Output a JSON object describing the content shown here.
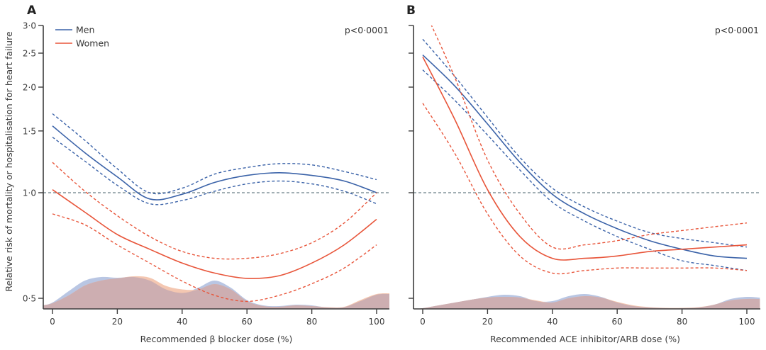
{
  "figure": {
    "y_axis_label": "Relative risk of mortality or hospitalisation for heart failure",
    "legend": [
      {
        "name": "Men",
        "color": "#3a62a8"
      },
      {
        "name": "Women",
        "color": "#e8553a"
      }
    ],
    "reference_line_color": "#6b7f86",
    "density_colors": {
      "men": "#b9c6e3",
      "women": "#f3c4ad",
      "overlap": "#cdaeb1"
    }
  },
  "chart_data": [
    {
      "type": "line",
      "panel": "A",
      "title": "A",
      "annotation": "p<0·0001",
      "xlabel": "Recommended β blocker dose (%)",
      "ylabel": "Relative risk of mortality or hospitalisation for heart failure",
      "x_ticks": [
        "0",
        "20",
        "40",
        "60",
        "80",
        "100"
      ],
      "y_ticks": [
        "0·5",
        "1·0",
        "1·5",
        "2·0",
        "2·5",
        "3·0"
      ],
      "y_tick_values": [
        0.5,
        1.0,
        1.5,
        2.0,
        2.5,
        3.0
      ],
      "y_scale": "log",
      "xlim": [
        -3,
        104
      ],
      "ylim": [
        0.47,
        3.0
      ],
      "reference_y": 1.0,
      "grid": false,
      "legend_position": "top-left",
      "x": [
        0,
        10,
        20,
        30,
        40,
        50,
        60,
        70,
        80,
        90,
        100
      ],
      "series": [
        {
          "name": "Men",
          "style": "solid",
          "values": [
            1.55,
            1.3,
            1.11,
            0.96,
            0.99,
            1.07,
            1.12,
            1.14,
            1.12,
            1.08,
            1.0
          ]
        },
        {
          "name": "Men upper 95% CI",
          "style": "dashed",
          "values": [
            1.68,
            1.41,
            1.17,
            1.0,
            1.03,
            1.13,
            1.18,
            1.21,
            1.2,
            1.15,
            1.09
          ]
        },
        {
          "name": "Men lower 95% CI",
          "style": "dashed",
          "values": [
            1.44,
            1.23,
            1.05,
            0.93,
            0.95,
            1.01,
            1.06,
            1.08,
            1.06,
            1.01,
            0.93
          ]
        },
        {
          "name": "Women",
          "style": "solid",
          "values": [
            1.02,
            0.88,
            0.76,
            0.69,
            0.63,
            0.59,
            0.57,
            0.58,
            0.63,
            0.71,
            0.84
          ]
        },
        {
          "name": "Women upper 95% CI",
          "style": "dashed",
          "values": [
            1.22,
            1.01,
            0.86,
            0.75,
            0.68,
            0.65,
            0.65,
            0.67,
            0.72,
            0.82,
            1.0
          ]
        },
        {
          "name": "Women lower 95% CI",
          "style": "dashed",
          "values": [
            0.87,
            0.81,
            0.71,
            0.63,
            0.56,
            0.51,
            0.49,
            0.51,
            0.55,
            0.61,
            0.71
          ]
        }
      ],
      "density": {
        "x": [
          -3,
          0,
          5,
          10,
          15,
          20,
          25,
          30,
          35,
          40,
          45,
          50,
          55,
          60,
          65,
          70,
          75,
          80,
          85,
          90,
          95,
          100,
          104
        ],
        "men": [
          0.1,
          0.18,
          0.5,
          0.8,
          0.9,
          0.88,
          0.9,
          0.8,
          0.55,
          0.45,
          0.6,
          0.8,
          0.6,
          0.25,
          0.1,
          0.08,
          0.12,
          0.1,
          0.04,
          0.05,
          0.22,
          0.4,
          0.42
        ],
        "women": [
          0.1,
          0.16,
          0.38,
          0.66,
          0.8,
          0.86,
          0.92,
          0.88,
          0.65,
          0.55,
          0.55,
          0.7,
          0.55,
          0.22,
          0.08,
          0.06,
          0.1,
          0.08,
          0.05,
          0.06,
          0.25,
          0.42,
          0.44
        ]
      }
    },
    {
      "type": "line",
      "panel": "B",
      "title": "B",
      "annotation": "p<0·0001",
      "xlabel": "Recommended ACE inhibitor/ARB dose (%)",
      "ylabel": "",
      "x_ticks": [
        "0",
        "20",
        "40",
        "60",
        "80",
        "100"
      ],
      "y_ticks": [],
      "y_tick_values": [
        0.5,
        1.0,
        1.5,
        2.0,
        2.5,
        3.0
      ],
      "y_scale": "log",
      "xlim": [
        -3,
        104
      ],
      "ylim": [
        0.47,
        3.0
      ],
      "reference_y": 1.0,
      "grid": false,
      "x": [
        0,
        10,
        20,
        30,
        40,
        50,
        60,
        70,
        80,
        90,
        100
      ],
      "series": [
        {
          "name": "Men",
          "style": "solid",
          "values": [
            2.47,
            2.01,
            1.57,
            1.22,
            0.99,
            0.87,
            0.79,
            0.73,
            0.69,
            0.66,
            0.65
          ]
        },
        {
          "name": "Men upper 95% CI",
          "style": "dashed",
          "values": [
            2.74,
            2.14,
            1.64,
            1.26,
            1.03,
            0.91,
            0.83,
            0.77,
            0.74,
            0.72,
            0.7
          ]
        },
        {
          "name": "Men lower 95% CI",
          "style": "dashed",
          "values": [
            2.24,
            1.83,
            1.46,
            1.16,
            0.94,
            0.83,
            0.75,
            0.69,
            0.64,
            0.62,
            0.6
          ]
        },
        {
          "name": "Women",
          "style": "solid",
          "values": [
            2.44,
            1.61,
            1.02,
            0.75,
            0.65,
            0.65,
            0.66,
            0.68,
            0.69,
            0.7,
            0.71
          ]
        },
        {
          "name": "Women upper 95% CI",
          "style": "dashed",
          "values": [
            3.4,
            2.12,
            1.24,
            0.87,
            0.7,
            0.71,
            0.73,
            0.76,
            0.78,
            0.8,
            0.82
          ]
        },
        {
          "name": "Women lower 95% CI",
          "style": "dashed",
          "values": [
            1.8,
            1.29,
            0.87,
            0.66,
            0.59,
            0.6,
            0.61,
            0.61,
            0.61,
            0.61,
            0.6
          ]
        }
      ],
      "density": {
        "x": [
          -3,
          0,
          5,
          10,
          15,
          20,
          25,
          30,
          35,
          40,
          45,
          50,
          55,
          60,
          65,
          70,
          75,
          80,
          85,
          90,
          95,
          100,
          104
        ],
        "men": [
          0.0,
          0.02,
          0.1,
          0.18,
          0.26,
          0.34,
          0.4,
          0.36,
          0.22,
          0.22,
          0.36,
          0.42,
          0.34,
          0.18,
          0.08,
          0.04,
          0.02,
          0.02,
          0.04,
          0.12,
          0.28,
          0.34,
          0.32
        ],
        "women": [
          0.0,
          0.02,
          0.1,
          0.18,
          0.26,
          0.32,
          0.34,
          0.32,
          0.24,
          0.18,
          0.3,
          0.36,
          0.32,
          0.2,
          0.1,
          0.05,
          0.03,
          0.03,
          0.05,
          0.12,
          0.24,
          0.28,
          0.28
        ]
      }
    }
  ]
}
